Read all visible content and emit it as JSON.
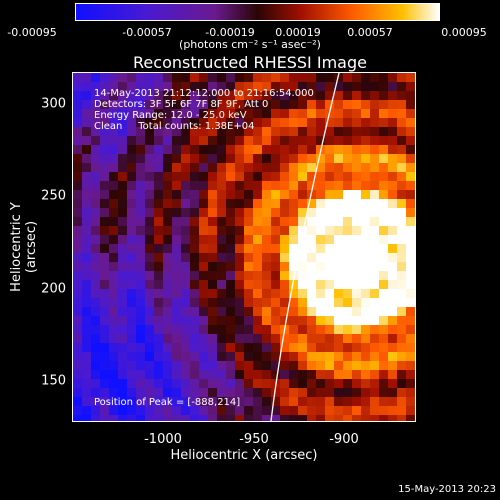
{
  "colorbar": {
    "ticks": [
      "-0.00095",
      "-0.00057",
      "-0.00019",
      "0.00019",
      "0.00057",
      "0.00095"
    ],
    "units": "(photons cm⁻² s⁻¹ asec⁻²)"
  },
  "image": {
    "title": "Reconstructed RHESSI Image",
    "info_lines": [
      "14-May-2013 21:12:12.000 to 21:16:54.000",
      "Detectors: 3F 5F 6F 7F 8F 9F, Att 0",
      "Energy Range: 12.0 - 25.0 keV",
      "Clean     Total counts: 1.38E+04"
    ],
    "peak_label": "Position of Peak = [-888,214]",
    "xlabel": "Heliocentric X (arcsec)",
    "ylabel": "Heliocentric Y (arcsec)",
    "xticks": [
      "-1000",
      "-950",
      "-900"
    ],
    "yticks": [
      "300",
      "250",
      "200",
      "150"
    ],
    "xlim": [
      -1045,
      -855
    ],
    "ylim": [
      125,
      318
    ],
    "peak": [
      -888,
      214
    ],
    "colormap": "hot-blue"
  },
  "footer": {
    "timestamp": "15-May-2013 20:23"
  }
}
